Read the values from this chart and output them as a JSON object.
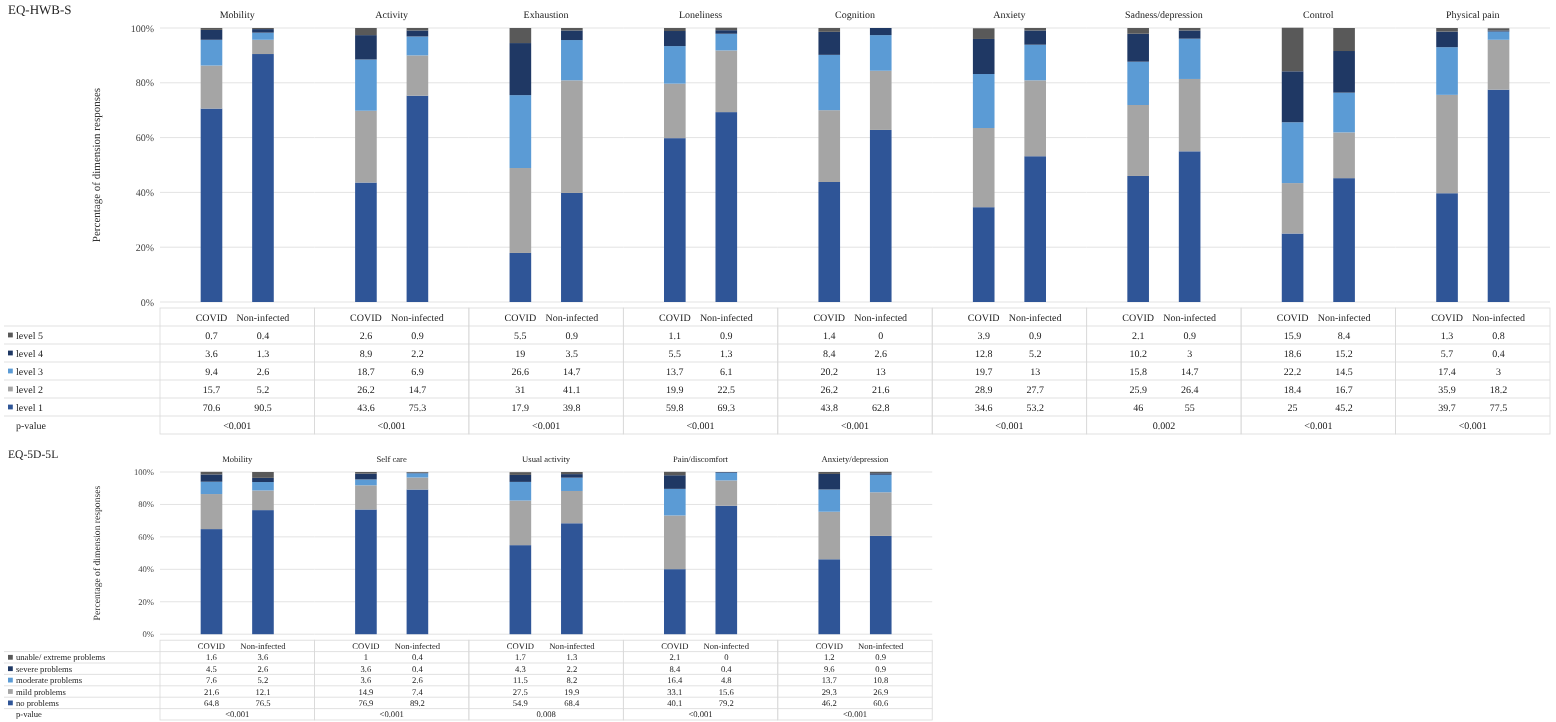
{
  "chart_data": [
    {
      "type": "bar",
      "stacked": true,
      "title": "Mobility",
      "ylabel": "Percentage of dimension responses",
      "categories": [
        "COVID",
        "Non-infected"
      ],
      "ylim": [
        0,
        100
      ],
      "yticks": [
        {
          "value": 0,
          "label": "0%"
        },
        {
          "value": 20,
          "label": "20%"
        },
        {
          "value": 40,
          "label": "40%"
        },
        {
          "value": 60,
          "label": "60%"
        },
        {
          "value": 80,
          "label": "80%"
        },
        {
          "value": 100,
          "label": "100%"
        }
      ],
      "grid": "y",
      "data_labels": true,
      "legend": "bottom",
      "annotations": [
        "EQ-HWB-S",
        "p-value",
        "<0.001"
      ],
      "series": [
        {
          "name": "level 1",
          "color": "#2f5597",
          "values": [
            70.6,
            90.5
          ]
        },
        {
          "name": "level 2",
          "color": "#a5a5a5",
          "values": [
            15.7,
            5.2
          ]
        },
        {
          "name": "level 3",
          "color": "#5b9bd5",
          "values": [
            9.4,
            2.6
          ]
        },
        {
          "name": "level 4",
          "color": "#1f3864",
          "values": [
            3.6,
            1.3
          ]
        },
        {
          "name": "level 5",
          "color": "#595959",
          "values": [
            0.7,
            0.4
          ]
        }
      ]
    },
    {
      "type": "bar",
      "stacked": true,
      "title": "Activity",
      "categories": [
        "COVID",
        "Non-infected"
      ],
      "ylim": [
        0,
        100
      ],
      "yticks": [
        0,
        20,
        40,
        60,
        80,
        100
      ],
      "tick_labels": "x",
      "grid": "y",
      "data_labels": true,
      "annotations": [
        "<0.001"
      ],
      "series": [
        {
          "color": "#2f5597",
          "values": [
            43.6,
            75.3
          ]
        },
        {
          "color": "#a5a5a5",
          "values": [
            26.2,
            14.7
          ]
        },
        {
          "color": "#5b9bd5",
          "values": [
            18.7,
            6.9
          ]
        },
        {
          "color": "#1f3864",
          "values": [
            8.9,
            2.2
          ]
        },
        {
          "color": "#595959",
          "values": [
            2.6,
            0.9
          ]
        }
      ]
    },
    {
      "type": "bar",
      "stacked": true,
      "title": "Exhaustion",
      "categories": [
        "COVID",
        "Non-infected"
      ],
      "ylim": [
        0,
        100
      ],
      "yticks": [
        0,
        20,
        40,
        60,
        80,
        100
      ],
      "tick_labels": "x",
      "grid": "y",
      "data_labels": true,
      "annotations": [
        "<0.001"
      ],
      "series": [
        {
          "color": "#2f5597",
          "values": [
            17.9,
            39.8
          ]
        },
        {
          "color": "#a5a5a5",
          "values": [
            31.0,
            41.1
          ]
        },
        {
          "color": "#5b9bd5",
          "values": [
            26.6,
            14.7
          ]
        },
        {
          "color": "#1f3864",
          "values": [
            19.0,
            3.5
          ]
        },
        {
          "color": "#595959",
          "values": [
            5.5,
            0.9
          ]
        }
      ]
    },
    {
      "type": "bar",
      "stacked": true,
      "title": "Loneliness",
      "categories": [
        "COVID",
        "Non-infected"
      ],
      "ylim": [
        0,
        100
      ],
      "yticks": [
        0,
        20,
        40,
        60,
        80,
        100
      ],
      "tick_labels": "x",
      "grid": "y",
      "data_labels": true,
      "annotations": [
        "<0.001"
      ],
      "series": [
        {
          "color": "#2f5597",
          "values": [
            59.8,
            69.3
          ]
        },
        {
          "color": "#a5a5a5",
          "values": [
            19.9,
            22.5
          ]
        },
        {
          "color": "#5b9bd5",
          "values": [
            13.7,
            6.1
          ]
        },
        {
          "color": "#1f3864",
          "values": [
            5.5,
            1.3
          ]
        },
        {
          "color": "#595959",
          "values": [
            1.1,
            0.9
          ]
        }
      ]
    },
    {
      "type": "bar",
      "stacked": true,
      "title": "Cognition",
      "categories": [
        "COVID",
        "Non-infected"
      ],
      "ylim": [
        0,
        100
      ],
      "yticks": [
        0,
        20,
        40,
        60,
        80,
        100
      ],
      "tick_labels": "x",
      "grid": "y",
      "data_labels": true,
      "annotations": [
        "<0.001"
      ],
      "series": [
        {
          "color": "#2f5597",
          "values": [
            43.8,
            62.8
          ]
        },
        {
          "color": "#a5a5a5",
          "values": [
            26.2,
            21.6
          ]
        },
        {
          "color": "#5b9bd5",
          "values": [
            20.2,
            13.0
          ]
        },
        {
          "color": "#1f3864",
          "values": [
            8.4,
            2.6
          ]
        },
        {
          "color": "#595959",
          "values": [
            1.4,
            0.0
          ]
        }
      ]
    },
    {
      "type": "bar",
      "stacked": true,
      "title": "Anxiety",
      "categories": [
        "COVID",
        "Non-infected"
      ],
      "ylim": [
        0,
        100
      ],
      "yticks": [
        0,
        20,
        40,
        60,
        80,
        100
      ],
      "tick_labels": "x",
      "grid": "y",
      "data_labels": true,
      "annotations": [
        "<0.001"
      ],
      "series": [
        {
          "color": "#2f5597",
          "values": [
            34.6,
            53.2
          ]
        },
        {
          "color": "#a5a5a5",
          "values": [
            28.9,
            27.7
          ]
        },
        {
          "color": "#5b9bd5",
          "values": [
            19.7,
            13.0
          ]
        },
        {
          "color": "#1f3864",
          "values": [
            12.8,
            5.2
          ]
        },
        {
          "color": "#595959",
          "values": [
            3.9,
            0.9
          ]
        }
      ]
    },
    {
      "type": "bar",
      "stacked": true,
      "title": "Sadness/depression",
      "categories": [
        "COVID",
        "Non-infected"
      ],
      "ylim": [
        0,
        100
      ],
      "yticks": [
        0,
        20,
        40,
        60,
        80,
        100
      ],
      "tick_labels": "x",
      "grid": "y",
      "data_labels": true,
      "annotations": [
        "0.002"
      ],
      "series": [
        {
          "color": "#2f5597",
          "values": [
            46.0,
            55.0
          ]
        },
        {
          "color": "#a5a5a5",
          "values": [
            25.9,
            26.4
          ]
        },
        {
          "color": "#5b9bd5",
          "values": [
            15.8,
            14.7
          ]
        },
        {
          "color": "#1f3864",
          "values": [
            10.2,
            3.0
          ]
        },
        {
          "color": "#595959",
          "values": [
            2.1,
            0.9
          ]
        }
      ]
    },
    {
      "type": "bar",
      "stacked": true,
      "title": "Control",
      "categories": [
        "COVID",
        "Non-infected"
      ],
      "ylim": [
        0,
        100
      ],
      "yticks": [
        0,
        20,
        40,
        60,
        80,
        100
      ],
      "tick_labels": "x",
      "grid": "y",
      "data_labels": true,
      "annotations": [
        "<0.001"
      ],
      "series": [
        {
          "color": "#2f5597",
          "values": [
            25.0,
            45.2
          ]
        },
        {
          "color": "#a5a5a5",
          "values": [
            18.4,
            16.7
          ]
        },
        {
          "color": "#5b9bd5",
          "values": [
            22.2,
            14.5
          ]
        },
        {
          "color": "#1f3864",
          "values": [
            18.6,
            15.2
          ]
        },
        {
          "color": "#595959",
          "values": [
            15.9,
            8.4
          ]
        }
      ]
    },
    {
      "type": "bar",
      "stacked": true,
      "title": "Physical pain",
      "categories": [
        "COVID",
        "Non-infected"
      ],
      "ylim": [
        0,
        100
      ],
      "yticks": [
        0,
        20,
        40,
        60,
        80,
        100
      ],
      "tick_labels": "x",
      "grid": "y",
      "data_labels": true,
      "annotations": [
        "<0.001"
      ],
      "series": [
        {
          "color": "#2f5597",
          "values": [
            39.7,
            77.5
          ]
        },
        {
          "color": "#a5a5a5",
          "values": [
            35.9,
            18.2
          ]
        },
        {
          "color": "#5b9bd5",
          "values": [
            17.4,
            3.0
          ]
        },
        {
          "color": "#1f3864",
          "values": [
            5.7,
            0.4
          ]
        },
        {
          "color": "#595959",
          "values": [
            1.3,
            0.8
          ]
        }
      ]
    },
    {
      "type": "bar",
      "stacked": true,
      "title": "Mobility",
      "ylabel": "Percentage of dimension responses",
      "categories": [
        "COVID",
        "Non-infected"
      ],
      "ylim": [
        0,
        100
      ],
      "yticks": [
        {
          "value": 0,
          "label": "0%"
        },
        {
          "value": 20,
          "label": "20%"
        },
        {
          "value": 40,
          "label": "40%"
        },
        {
          "value": 60,
          "label": "60%"
        },
        {
          "value": 80,
          "label": "80%"
        },
        {
          "value": 100,
          "label": "100%"
        }
      ],
      "grid": "y",
      "data_labels": true,
      "legend": "bottom",
      "annotations": [
        "EQ-5D-5L",
        "p-value",
        "<0.001"
      ],
      "series": [
        {
          "name": "no problems",
          "color": "#2f5597",
          "values": [
            64.8,
            76.5
          ]
        },
        {
          "name": "mild problems",
          "color": "#a5a5a5",
          "values": [
            21.6,
            12.1
          ]
        },
        {
          "name": "moderate problems",
          "color": "#5b9bd5",
          "values": [
            7.6,
            5.2
          ]
        },
        {
          "name": "severe problems",
          "color": "#1f3864",
          "values": [
            4.5,
            2.6
          ]
        },
        {
          "name": "unable/ extreme problems",
          "color": "#595959",
          "values": [
            1.6,
            3.6
          ]
        }
      ]
    },
    {
      "type": "bar",
      "stacked": true,
      "title": "Self care",
      "categories": [
        "COVID",
        "Non-infected"
      ],
      "ylim": [
        0,
        100
      ],
      "yticks": [
        0,
        20,
        40,
        60,
        80,
        100
      ],
      "tick_labels": "x",
      "grid": "y",
      "data_labels": true,
      "annotations": [
        "<0.001"
      ],
      "series": [
        {
          "color": "#2f5597",
          "values": [
            76.9,
            89.2
          ]
        },
        {
          "color": "#a5a5a5",
          "values": [
            14.9,
            7.4
          ]
        },
        {
          "color": "#5b9bd5",
          "values": [
            3.6,
            2.6
          ]
        },
        {
          "color": "#1f3864",
          "values": [
            3.6,
            0.4
          ]
        },
        {
          "color": "#595959",
          "values": [
            1.0,
            0.4
          ]
        }
      ]
    },
    {
      "type": "bar",
      "stacked": true,
      "title": "Usual activity",
      "categories": [
        "COVID",
        "Non-infected"
      ],
      "ylim": [
        0,
        100
      ],
      "yticks": [
        0,
        20,
        40,
        60,
        80,
        100
      ],
      "tick_labels": "x",
      "grid": "y",
      "data_labels": true,
      "annotations": [
        "0.008"
      ],
      "series": [
        {
          "color": "#2f5597",
          "values": [
            54.9,
            68.4
          ]
        },
        {
          "color": "#a5a5a5",
          "values": [
            27.5,
            19.9
          ]
        },
        {
          "color": "#5b9bd5",
          "values": [
            11.5,
            8.2
          ]
        },
        {
          "color": "#1f3864",
          "values": [
            4.3,
            2.2
          ]
        },
        {
          "color": "#595959",
          "values": [
            1.7,
            1.3
          ]
        }
      ]
    },
    {
      "type": "bar",
      "stacked": true,
      "title": "Pain/discomfort",
      "categories": [
        "COVID",
        "Non-infected"
      ],
      "ylim": [
        0,
        100
      ],
      "yticks": [
        0,
        20,
        40,
        60,
        80,
        100
      ],
      "tick_labels": "x",
      "grid": "y",
      "data_labels": true,
      "annotations": [
        "<0.001"
      ],
      "series": [
        {
          "color": "#2f5597",
          "values": [
            40.1,
            79.2
          ]
        },
        {
          "color": "#a5a5a5",
          "values": [
            33.1,
            15.6
          ]
        },
        {
          "color": "#5b9bd5",
          "values": [
            16.4,
            4.8
          ]
        },
        {
          "color": "#1f3864",
          "values": [
            8.4,
            0.4
          ]
        },
        {
          "color": "#595959",
          "values": [
            2.1,
            0.0
          ]
        }
      ]
    },
    {
      "type": "bar",
      "stacked": true,
      "title": "Anxiety/depression",
      "categories": [
        "COVID",
        "Non-infected"
      ],
      "ylim": [
        0,
        100
      ],
      "yticks": [
        0,
        20,
        40,
        60,
        80,
        100
      ],
      "tick_labels": "x",
      "grid": "y",
      "data_labels": true,
      "annotations": [
        "<0.001"
      ],
      "series": [
        {
          "color": "#2f5597",
          "values": [
            46.2,
            60.6
          ]
        },
        {
          "color": "#a5a5a5",
          "values": [
            29.3,
            26.9
          ]
        },
        {
          "color": "#5b9bd5",
          "values": [
            13.7,
            10.8
          ]
        },
        {
          "color": "#1f3864",
          "values": [
            9.6,
            0.9
          ]
        },
        {
          "color": "#595959",
          "values": [
            1.2,
            0.9
          ]
        }
      ]
    }
  ]
}
